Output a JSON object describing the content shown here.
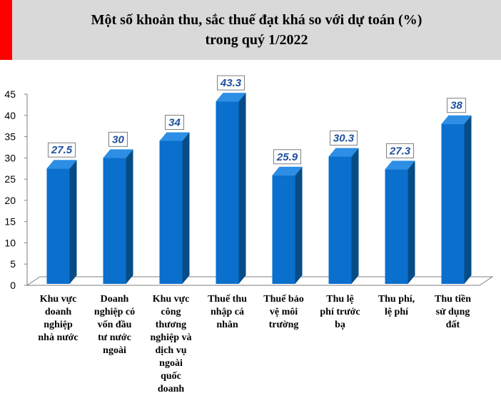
{
  "header": {
    "title_line1": "Một số khoản thu, sắc thuế đạt khá so với dự toán (%)",
    "title_line2": "trong quý 1/2022"
  },
  "colors": {
    "header_bg": "#d9d9d9",
    "accent": "#ff0000",
    "bar_front": "#0a6fcd",
    "bar_side": "#064c87",
    "bar_top": "#2c8ee4",
    "label_text": "#1f4fa0"
  },
  "chart_data": {
    "type": "bar",
    "title": "Một số khoản thu, sắc thuế đạt khá so với dự toán (%) trong quý 1/2022",
    "categories": [
      "Khu vực doanh nghiệp nhà nước",
      "Doanh nghiệp có vốn đầu tư nước ngoài",
      "Khu vực công thương nghiệp và dịch vụ ngoài quốc doanh",
      "Thuế thu nhập cá nhân",
      "Thuế bảo vệ môi trường",
      "Thu lệ phí trước bạ",
      "Thu phí, lệ phí",
      "Thu tiền sử dụng đất"
    ],
    "category_lines": [
      [
        "Khu vực",
        "doanh",
        "nghiệp",
        "nhà nước"
      ],
      [
        "Doanh",
        "nghiệp có",
        "vốn đầu",
        "tư nước",
        "ngoài"
      ],
      [
        "Khu vực",
        "công",
        "thương",
        "nghiệp và",
        "dịch vụ",
        "ngoài",
        "quốc",
        "doanh"
      ],
      [
        "Thuế thu",
        "nhập cá",
        "nhân"
      ],
      [
        "Thuế bảo",
        "vệ môi",
        "trường"
      ],
      [
        "Thu lệ",
        "phí trước",
        "bạ"
      ],
      [
        "Thu phí,",
        "lệ phí"
      ],
      [
        "Thu tiền",
        "sử dụng",
        "đất"
      ]
    ],
    "values": [
      27.5,
      30,
      34,
      43.3,
      25.9,
      30.3,
      27.3,
      38
    ],
    "value_labels": [
      "27.5",
      "30",
      "34",
      "43.3",
      "25.9",
      "30.3",
      "27.3",
      "38"
    ],
    "ylim": [
      0,
      45
    ],
    "yticks": [
      0,
      5,
      10,
      15,
      20,
      25,
      30,
      35,
      40,
      45
    ],
    "xlabel": "",
    "ylabel": "",
    "grid": false,
    "legend": "none"
  }
}
